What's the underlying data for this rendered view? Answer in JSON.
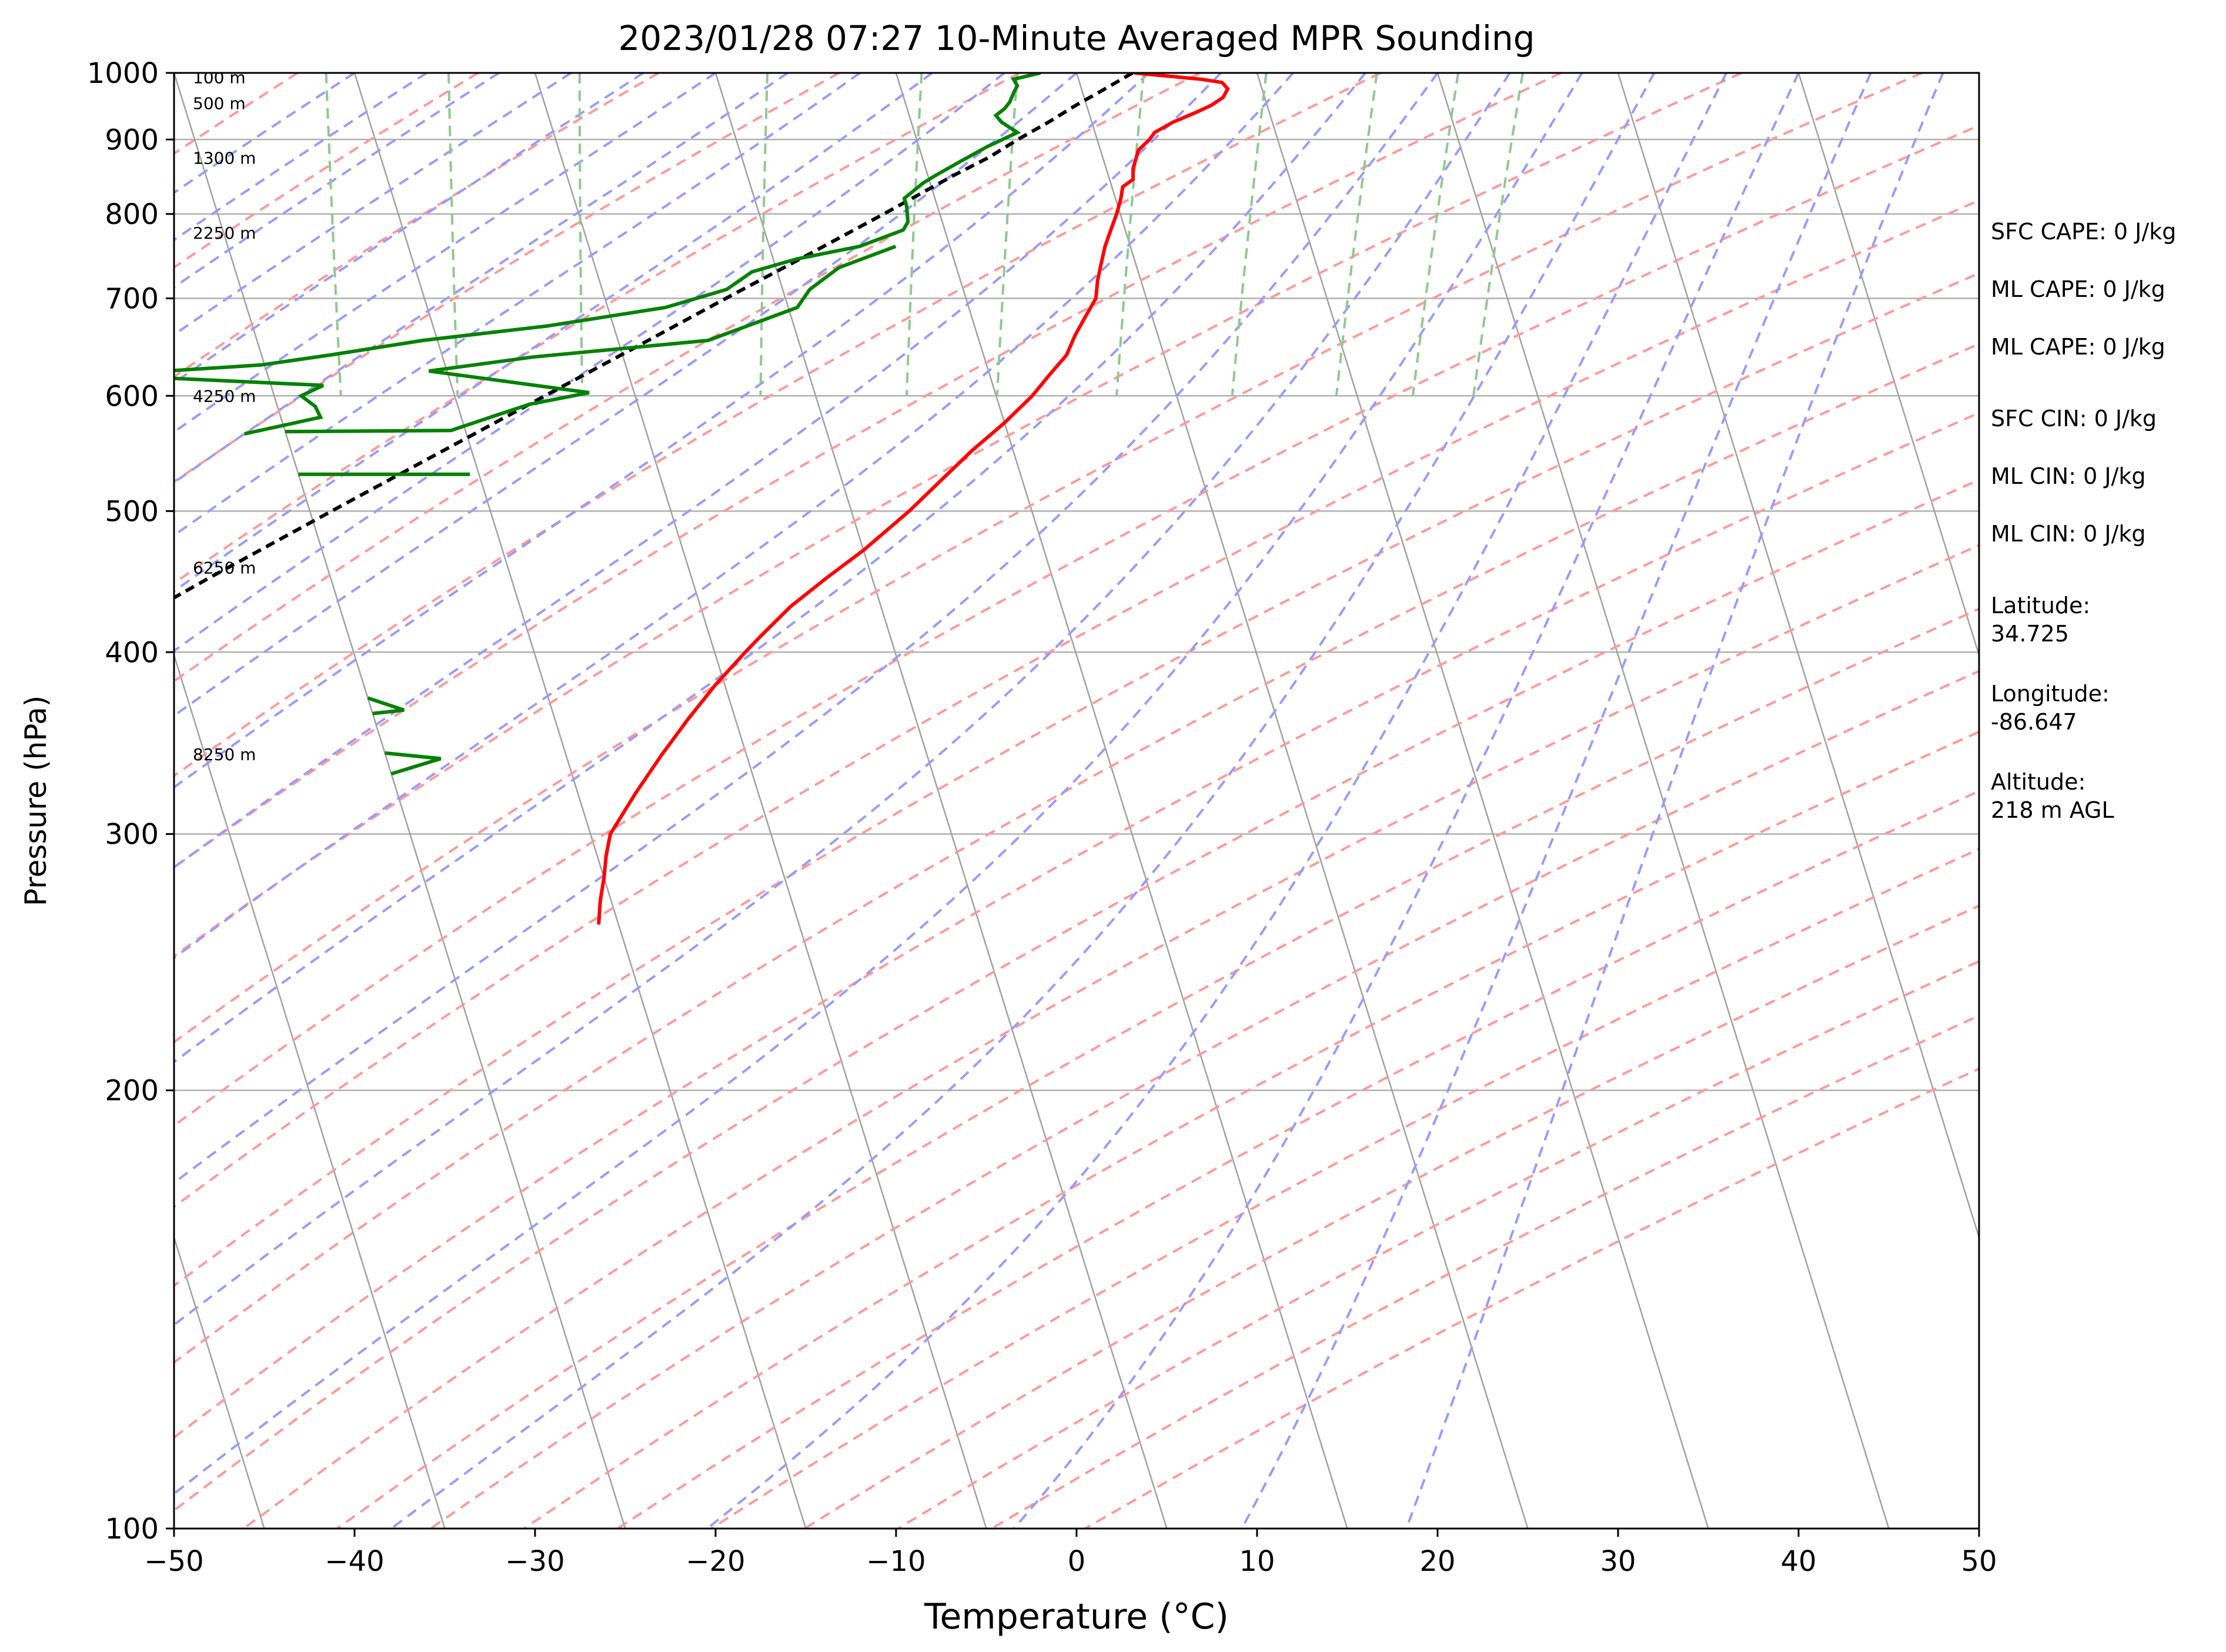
{
  "chart_data": {
    "type": "skew-t",
    "title": "2023/01/28 07:27 10-Minute Averaged MPR Sounding",
    "xlabel": "Temperature (°C)",
    "ylabel": "Pressure (hPa)",
    "xlim": [
      -50,
      50
    ],
    "ylim": [
      1000,
      100
    ],
    "y_scale": "log",
    "x_ticks": [
      "−50",
      "−40",
      "−30",
      "−20",
      "−10",
      "0",
      "10",
      "20",
      "30",
      "40",
      "50"
    ],
    "x_tick_values": [
      -50,
      -40,
      -30,
      -20,
      -10,
      0,
      10,
      20,
      30,
      40,
      50
    ],
    "y_ticks": [
      "100",
      "200",
      "300",
      "400",
      "500",
      "600",
      "700",
      "800",
      "900",
      "1000"
    ],
    "y_tick_values": [
      100,
      200,
      300,
      400,
      500,
      600,
      700,
      800,
      900,
      1000
    ],
    "skew_per_decade": 25,
    "grid": true,
    "colors": {
      "temperature": "#ff0000",
      "dewpoint": "#008000",
      "parcel": "#000000",
      "isotherm": "#a0a0a0",
      "dry_adiabat": "#ff9a9a",
      "moist_adiabat": "#9a9aff",
      "mixing_ratio": "#90c890",
      "isobar": "#b0b0b0"
    },
    "temperature": {
      "pressure": [
        1000,
        995,
        990,
        985,
        975,
        962,
        950,
        940,
        925,
        910,
        900,
        885,
        860,
        845,
        835,
        820,
        800,
        780,
        760,
        740,
        720,
        700,
        680,
        660,
        640,
        620,
        600,
        575,
        550,
        525,
        500,
        470,
        450,
        430,
        410,
        400,
        380,
        360,
        340,
        320,
        300,
        290,
        280,
        270,
        260
      ],
      "values": [
        3.2,
        5.0,
        6.8,
        7.9,
        8.1,
        7.7,
        6.9,
        6.0,
        4.5,
        3.3,
        2.9,
        2.1,
        1.5,
        1.3,
        0.6,
        0.3,
        -0.2,
        -0.8,
        -1.4,
        -1.9,
        -2.4,
        -2.8,
        -3.7,
        -4.6,
        -5.4,
        -6.7,
        -8.0,
        -10.0,
        -12.3,
        -14.5,
        -16.8,
        -20.0,
        -22.5,
        -25.0,
        -27.2,
        -28.3,
        -30.5,
        -32.6,
        -34.7,
        -36.8,
        -38.9,
        -39.5,
        -40.0,
        -40.6,
        -41.1
      ]
    },
    "dewpoint": {
      "pressure": [
        1000,
        990,
        980,
        970,
        955,
        945,
        935,
        925,
        910,
        890,
        870,
        850,
        840,
        820,
        810,
        790,
        780,
        760,
        745,
        730,
        710,
        690,
        670,
        655,
        640,
        630,
        620,
        610,
        600,
        590,
        580,
        565
      ],
      "values": [
        -2.0,
        -3.6,
        -3.5,
        -3.8,
        -4.2,
        -4.6,
        -5.2,
        -5.0,
        -4.3,
        -6.2,
        -7.9,
        -9.6,
        -10.4,
        -11.7,
        -11.7,
        -11.9,
        -12.3,
        -15.0,
        -18.7,
        -21.4,
        -23.1,
        -26.8,
        -33.7,
        -40.8,
        -46.2,
        -50.2,
        -59.1,
        -47.1,
        -48.5,
        -47.9,
        -47.8,
        -52.3
      ]
    },
    "parcel": {
      "pressure": [
        1000,
        975,
        950,
        925,
        900,
        875,
        850,
        800,
        750,
        700,
        650,
        600,
        550,
        500,
        450,
        400,
        350,
        300,
        275
      ],
      "values": [
        3.1,
        1.3,
        -0.6,
        -2.4,
        -4.4,
        -6.3,
        -8.6,
        -13.1,
        -18.0,
        -23.3,
        -28.9,
        -35.0,
        -41.6,
        -48.8,
        -56.7,
        -65.3,
        -75.1,
        -86.2,
        -92.4
      ]
    },
    "height_labels": [
      {
        "label": "8250 m",
        "pressure": 341
      },
      {
        "label": "6250 m",
        "pressure": 458
      },
      {
        "label": "4250 m",
        "pressure": 601
      },
      {
        "label": "2250 m",
        "pressure": 778
      },
      {
        "label": "1300 m",
        "pressure": 876
      },
      {
        "label": "500 m",
        "pressure": 955
      },
      {
        "label": "100 m",
        "pressure": 995
      }
    ],
    "wind_barbs": [
      {
        "pressure": 333,
        "shape": [
          [
            -50,
            330
          ],
          [
            -47,
            338
          ],
          [
            -50,
            341
          ]
        ]
      },
      {
        "pressure": 365,
        "shape": [
          [
            -50,
            363
          ],
          [
            -48.2,
            365
          ],
          [
            -50,
            372
          ]
        ]
      },
      {
        "pressure": 530,
        "shape": [
          [
            -50,
            530
          ],
          [
            -40.5,
            530
          ]
        ]
      },
      {
        "pressure": 570,
        "shape": [
          [
            -50,
            567
          ],
          [
            -40.8,
            568
          ],
          [
            -38,
            582
          ],
          [
            -36,
            592
          ],
          [
            -32.5,
            603
          ],
          [
            -41,
            624
          ],
          [
            -35,
            638
          ],
          [
            -25,
            655
          ],
          [
            -19.5,
            690
          ],
          [
            -18.5,
            710
          ],
          [
            -16.5,
            735
          ],
          [
            -13.0,
            760
          ]
        ]
      }
    ]
  },
  "side_panel": {
    "sfc_cape": "SFC CAPE: 0 J/kg",
    "ml_cape_1": "ML CAPE: 0 J/kg",
    "ml_cape_2": "ML CAPE: 0 J/kg",
    "sfc_cin": "SFC CIN: 0 J/kg",
    "ml_cin_1": "ML CIN: 0 J/kg",
    "ml_cin_2": "ML CIN: 0 J/kg",
    "latitude": "Latitude:\n34.725",
    "longitude": "Longitude:\n-86.647",
    "altitude": "Altitude:\n218 m AGL"
  }
}
